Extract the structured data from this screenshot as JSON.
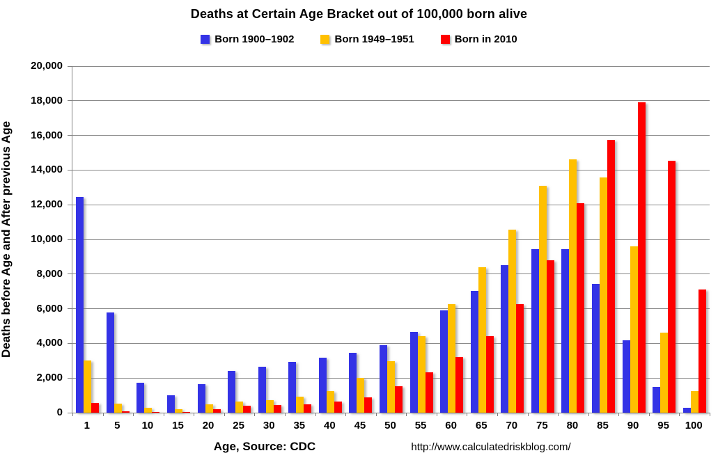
{
  "title": "Deaths at Certain Age Bracket out of 100,000 born alive",
  "y_axis": {
    "label": "Deaths before Age and After previous Age",
    "tick_labels": [
      "20,000",
      "18,000",
      "16,000",
      "14,000",
      "12,000",
      "10,000",
      "8,000",
      "6,000",
      "4,000",
      "2,000",
      "0"
    ]
  },
  "x_axis": {
    "label": "Age, Source: CDC",
    "source_url": "http://www.calculatedriskblog.com/"
  },
  "colors": {
    "born_1900_1902": "#3433E6",
    "born_1949_1951": "#FFC000",
    "born_2010": "#FF0000",
    "gridline": "#898989",
    "axis": "#7F7F7F"
  },
  "chart_data": {
    "type": "bar",
    "title": "Deaths at Certain Age Bracket out of 100,000 born alive",
    "xlabel": "Age, Source: CDC",
    "ylabel": "Deaths before Age and After previous Age",
    "ylim": [
      0,
      20000
    ],
    "ytick_step": 2000,
    "grid": true,
    "legend_position": "top",
    "categories": [
      "1",
      "5",
      "10",
      "15",
      "20",
      "25",
      "30",
      "35",
      "40",
      "45",
      "50",
      "55",
      "60",
      "65",
      "70",
      "75",
      "80",
      "85",
      "90",
      "95",
      "100"
    ],
    "series": [
      {
        "name": "Born 1900–1902",
        "color": "#3433E6",
        "values": [
          12450,
          5780,
          1710,
          1020,
          1660,
          2420,
          2660,
          2930,
          3160,
          3440,
          3890,
          4660,
          5900,
          7010,
          8520,
          9420,
          9420,
          7450,
          4160,
          1480,
          300
        ]
      },
      {
        "name": "Born 1949–1951",
        "color": "#FFC000",
        "values": [
          3000,
          520,
          280,
          215,
          480,
          640,
          720,
          920,
          1260,
          1990,
          2990,
          4400,
          6280,
          8390,
          10570,
          13100,
          14600,
          13570,
          9590,
          4600,
          1250
        ]
      },
      {
        "name": "Born in 2010",
        "color": "#FF0000",
        "values": [
          550,
          70,
          30,
          35,
          195,
          410,
          440,
          500,
          640,
          900,
          1520,
          2310,
          3230,
          4410,
          6270,
          8790,
          12100,
          15760,
          17900,
          14550,
          7100
        ]
      }
    ]
  }
}
